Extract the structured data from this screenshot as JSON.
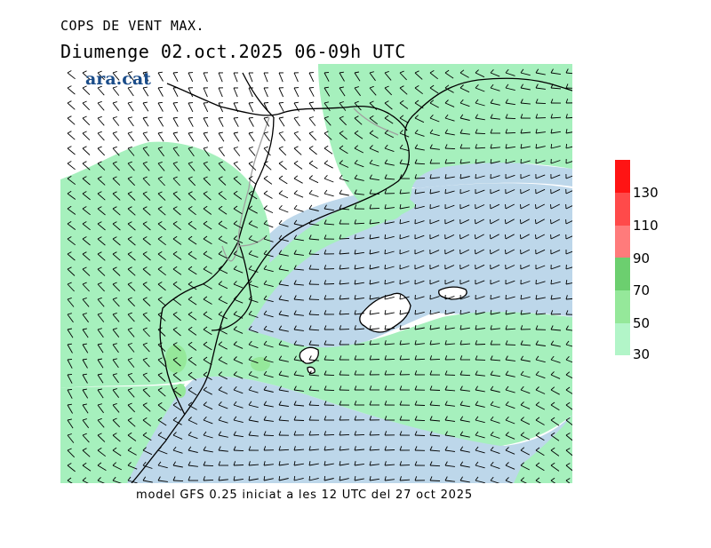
{
  "header": {
    "title": "COPS DE VENT MAX.",
    "subtitle": "Diumenge  02.oct.2025  06-09h  UTC"
  },
  "logo": {
    "text": "ara.cat"
  },
  "footer": {
    "text": "model GFS 0.25 iniciat a les 12 UTC del 27 oct 2025"
  },
  "legend": {
    "ticks": [
      "30",
      "50",
      "70",
      "90",
      "110",
      "130"
    ],
    "colors": {
      "c30": "#b2f5c8",
      "c50": "#95e89a",
      "c70": "#6ccf6f",
      "c90": "#ff7b7b",
      "c110": "#ff4a4a",
      "c130": "#ff1414",
      "low": "#bdd7ea",
      "land": "#ffffff",
      "lowgreen": "#a6f0bd"
    }
  },
  "map": {
    "wind_barb_color": "#000000",
    "coast_color": "#000000",
    "border_color": "#a0a0a0"
  }
}
